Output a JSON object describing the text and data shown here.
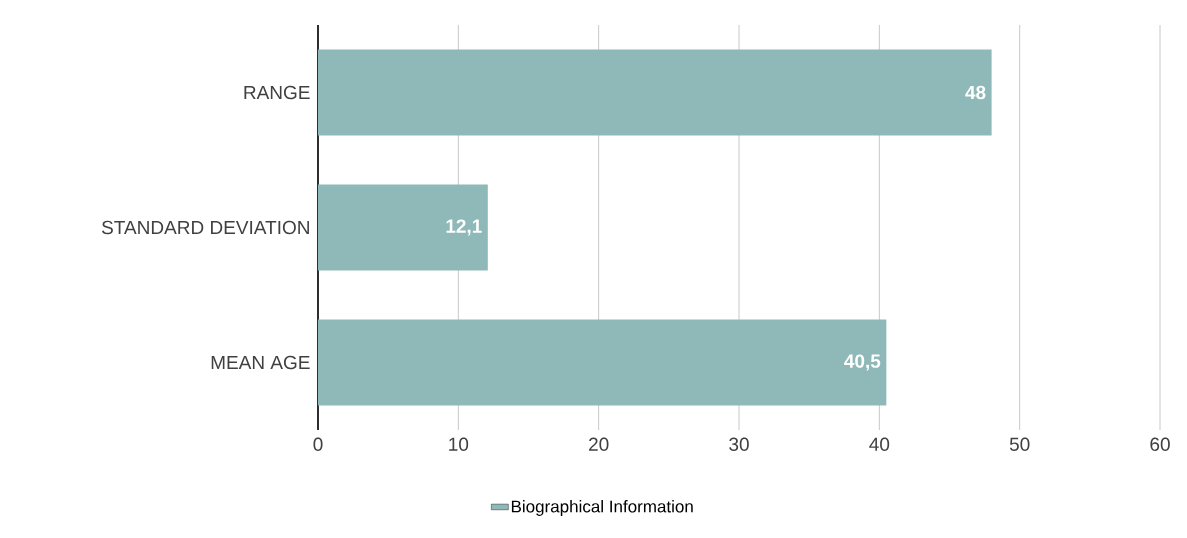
{
  "chart_data": {
    "type": "bar",
    "orientation": "horizontal",
    "categories": [
      "RANGE",
      "STANDARD DEVIATION",
      "MEAN AGE"
    ],
    "series": [
      {
        "name": "Biographical Information",
        "color": "#8fb9b8",
        "values": [
          48,
          12.1,
          40.5
        ],
        "value_labels": [
          "48",
          "12,1",
          "40,5"
        ]
      }
    ],
    "xlim": [
      0,
      60
    ],
    "xticks": [
      0,
      10,
      20,
      30,
      40,
      50,
      60
    ],
    "grid": "x",
    "legend": "bottom"
  }
}
